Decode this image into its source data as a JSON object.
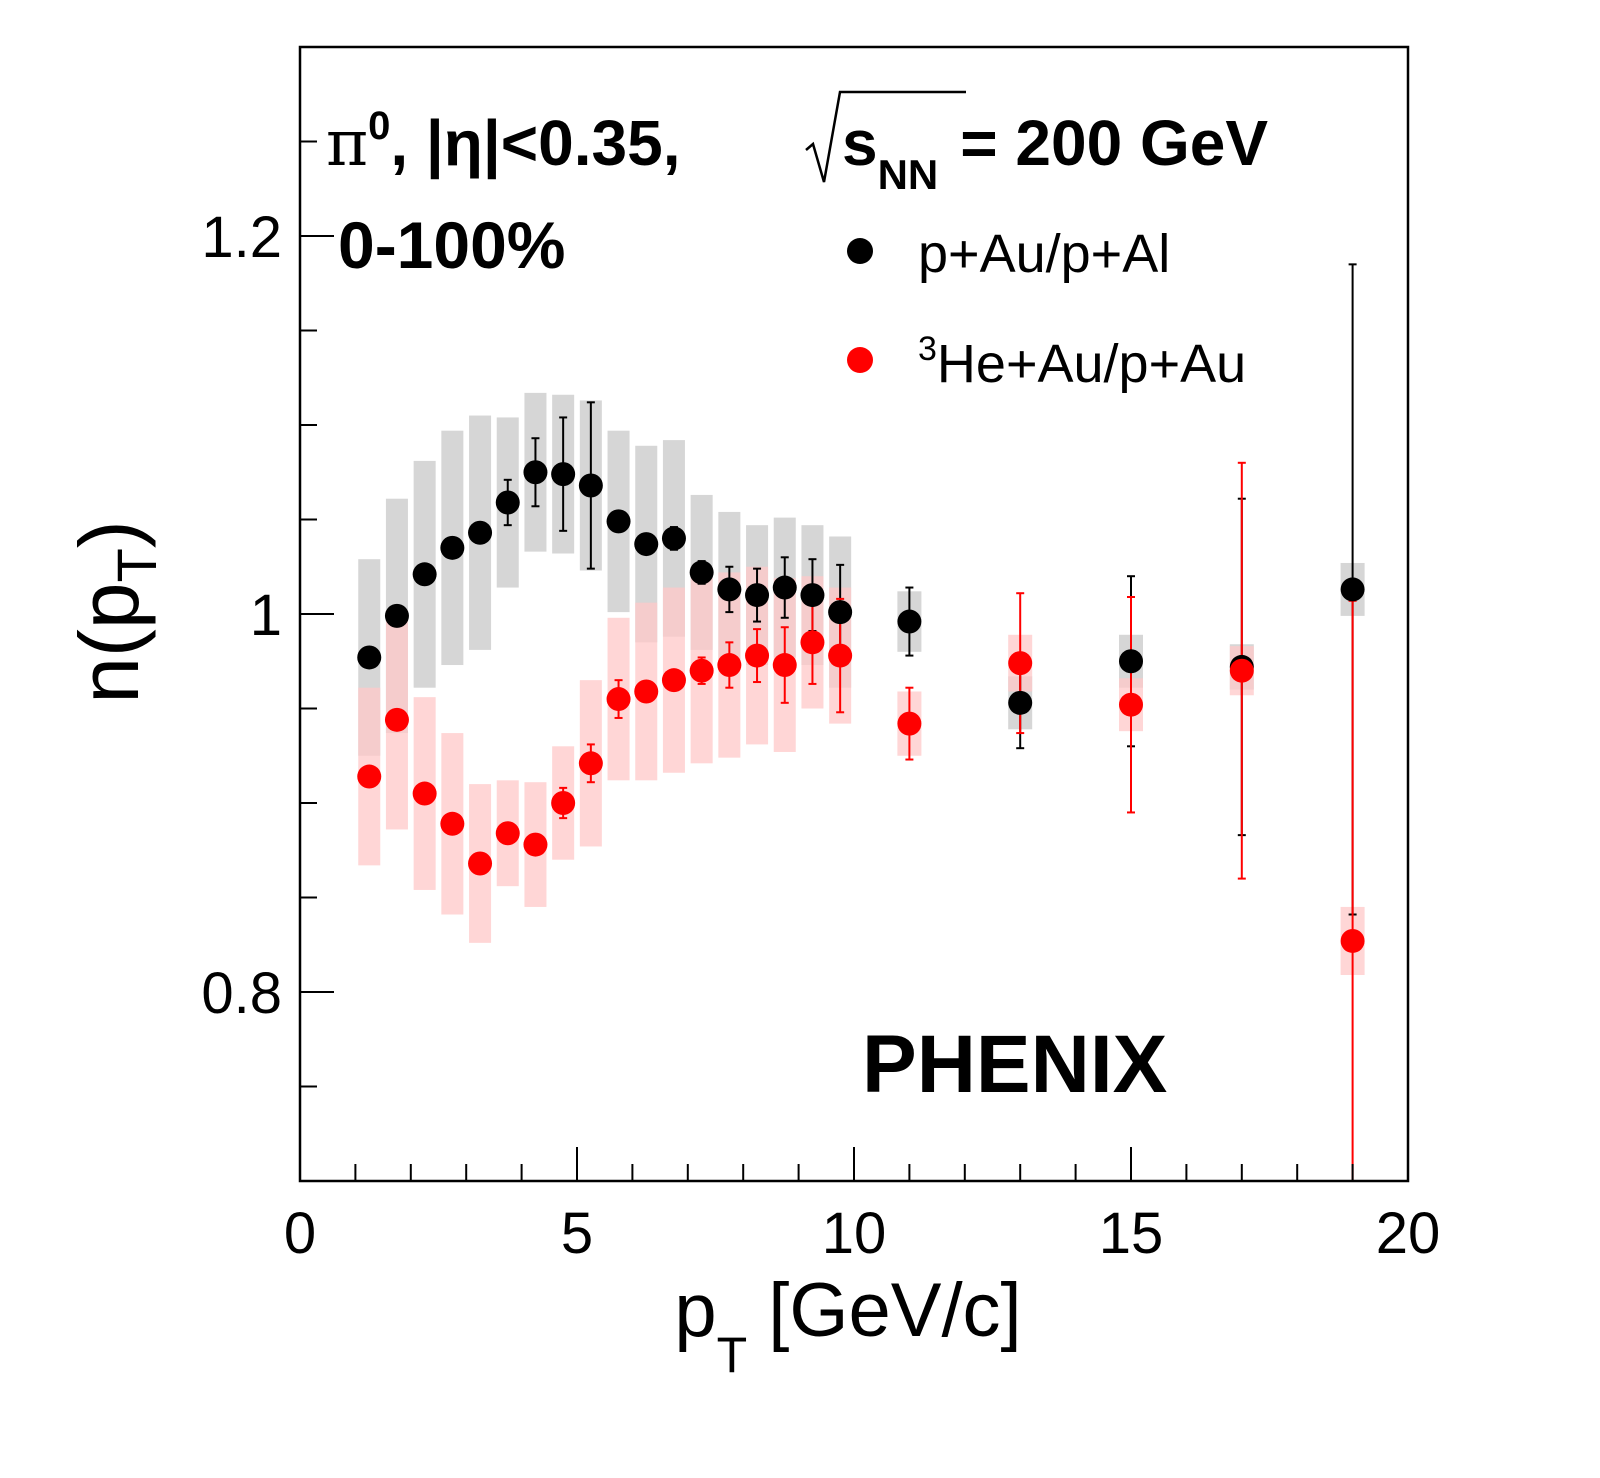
{
  "chart_data": {
    "type": "scatter",
    "xlabel_main": "p",
    "xlabel_sub": "T",
    "xlabel_rest": " [GeV/c]",
    "ylabel_main": "n(p",
    "ylabel_sub": "T",
    "ylabel_rest": ")",
    "xlim": [
      0,
      20
    ],
    "ylim": [
      0.7,
      1.3
    ],
    "x_ticks": [
      0,
      5,
      10,
      15,
      20
    ],
    "x_tick_labels": [
      "0",
      "5",
      "10",
      "15",
      "20"
    ],
    "y_ticks": [
      0.8,
      1.0,
      1.2
    ],
    "y_tick_labels": [
      "0.8",
      "1",
      "1.2"
    ],
    "annotations": {
      "line1_pi": "π",
      "line1_pi_sup": "0",
      "line1_eta": ", |η|<0.35,",
      "line1_s": "s",
      "line1_s_sub": "NN",
      "line1_energy": "= 200 GeV",
      "centrality": "0-100%",
      "experiment": "PHENIX"
    },
    "legend": {
      "placement": "top-right",
      "items": [
        {
          "label": "p+Au/p+Al",
          "sup": "",
          "color": "#000000"
        },
        {
          "label": "He+Au/p+Au",
          "sup": "3",
          "color": "#ff0000"
        }
      ]
    },
    "series": [
      {
        "name": "p+Au/p+Al",
        "color": "#000000",
        "syst_color": "#c8c8c8",
        "points": [
          {
            "x": 1.25,
            "y": 0.977,
            "stat": 0.0,
            "syst": 0.052
          },
          {
            "x": 1.75,
            "y": 0.999,
            "stat": 0.0,
            "syst": 0.062
          },
          {
            "x": 2.25,
            "y": 1.021,
            "stat": 0.0,
            "syst": 0.06
          },
          {
            "x": 2.75,
            "y": 1.035,
            "stat": 0.0,
            "syst": 0.062
          },
          {
            "x": 3.25,
            "y": 1.043,
            "stat": 0.003,
            "syst": 0.062
          },
          {
            "x": 3.75,
            "y": 1.059,
            "stat": 0.012,
            "syst": 0.045
          },
          {
            "x": 4.25,
            "y": 1.075,
            "stat": 0.018,
            "syst": 0.042
          },
          {
            "x": 4.75,
            "y": 1.074,
            "stat": 0.03,
            "syst": 0.042
          },
          {
            "x": 5.25,
            "y": 1.068,
            "stat": 0.044,
            "syst": 0.045
          },
          {
            "x": 5.75,
            "y": 1.049,
            "stat": 0.0,
            "syst": 0.048
          },
          {
            "x": 6.25,
            "y": 1.037,
            "stat": 0.0,
            "syst": 0.052
          },
          {
            "x": 6.75,
            "y": 1.04,
            "stat": 0.006,
            "syst": 0.052
          },
          {
            "x": 7.25,
            "y": 1.022,
            "stat": 0.006,
            "syst": 0.041
          },
          {
            "x": 7.75,
            "y": 1.013,
            "stat": 0.012,
            "syst": 0.041
          },
          {
            "x": 8.25,
            "y": 1.01,
            "stat": 0.014,
            "syst": 0.037
          },
          {
            "x": 8.75,
            "y": 1.014,
            "stat": 0.016,
            "syst": 0.037
          },
          {
            "x": 9.25,
            "y": 1.01,
            "stat": 0.019,
            "syst": 0.037
          },
          {
            "x": 9.75,
            "y": 1.001,
            "stat": 0.025,
            "syst": 0.04
          },
          {
            "x": 11.0,
            "y": 0.996,
            "stat": 0.018,
            "syst": 0.016
          },
          {
            "x": 13.0,
            "y": 0.953,
            "stat": 0.024,
            "syst": 0.014
          },
          {
            "x": 15.0,
            "y": 0.975,
            "stat": 0.045,
            "syst": 0.014
          },
          {
            "x": 17.0,
            "y": 0.972,
            "stat": 0.089,
            "syst": 0.012
          },
          {
            "x": 19.0,
            "y": 1.013,
            "stat": 0.172,
            "syst": 0.014
          }
        ]
      },
      {
        "name": "He+Au/p+Au",
        "color": "#ff0000",
        "syst_color": "#ffc8c8",
        "points": [
          {
            "x": 1.25,
            "y": 0.914,
            "stat": 0.0,
            "syst": 0.047
          },
          {
            "x": 1.75,
            "y": 0.944,
            "stat": 0.0,
            "syst": 0.058
          },
          {
            "x": 2.25,
            "y": 0.905,
            "stat": 0.0,
            "syst": 0.051
          },
          {
            "x": 2.75,
            "y": 0.889,
            "stat": 0.0,
            "syst": 0.048
          },
          {
            "x": 3.25,
            "y": 0.868,
            "stat": 0.0,
            "syst": 0.042
          },
          {
            "x": 3.75,
            "y": 0.884,
            "stat": 0.0,
            "syst": 0.028
          },
          {
            "x": 4.25,
            "y": 0.878,
            "stat": 0.004,
            "syst": 0.033
          },
          {
            "x": 4.75,
            "y": 0.9,
            "stat": 0.008,
            "syst": 0.03
          },
          {
            "x": 5.25,
            "y": 0.921,
            "stat": 0.01,
            "syst": 0.044
          },
          {
            "x": 5.75,
            "y": 0.955,
            "stat": 0.01,
            "syst": 0.043
          },
          {
            "x": 6.25,
            "y": 0.959,
            "stat": 0.0,
            "syst": 0.047
          },
          {
            "x": 6.75,
            "y": 0.965,
            "stat": 0.005,
            "syst": 0.049
          },
          {
            "x": 7.25,
            "y": 0.97,
            "stat": 0.007,
            "syst": 0.049
          },
          {
            "x": 7.75,
            "y": 0.973,
            "stat": 0.012,
            "syst": 0.049
          },
          {
            "x": 8.25,
            "y": 0.978,
            "stat": 0.014,
            "syst": 0.047
          },
          {
            "x": 8.75,
            "y": 0.973,
            "stat": 0.02,
            "syst": 0.046
          },
          {
            "x": 9.25,
            "y": 0.985,
            "stat": 0.022,
            "syst": 0.035
          },
          {
            "x": 9.75,
            "y": 0.978,
            "stat": 0.03,
            "syst": 0.036
          },
          {
            "x": 11.0,
            "y": 0.942,
            "stat": 0.019,
            "syst": 0.017
          },
          {
            "x": 13.0,
            "y": 0.974,
            "stat": 0.037,
            "syst": 0.015
          },
          {
            "x": 15.0,
            "y": 0.952,
            "stat": 0.057,
            "syst": 0.014
          },
          {
            "x": 17.0,
            "y": 0.97,
            "stat": 0.11,
            "syst": 0.013
          },
          {
            "x": 19.0,
            "y": 0.827,
            "stat": 0.18,
            "syst": 0.018
          }
        ]
      }
    ]
  }
}
